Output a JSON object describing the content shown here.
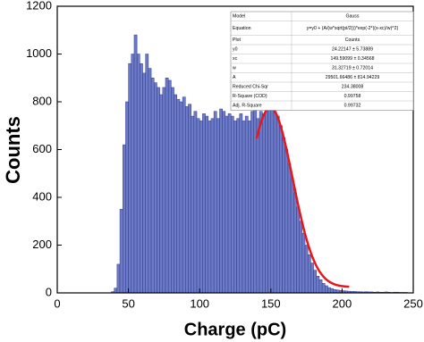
{
  "chart_data": {
    "type": "histogram",
    "xlabel": "Charge (pC)",
    "ylabel": "Counts",
    "bins": [
      38,
      40,
      42,
      44,
      46,
      48,
      50,
      52,
      54,
      56,
      58,
      60,
      62,
      64,
      66,
      68,
      70,
      72,
      74,
      76,
      78,
      80,
      82,
      84,
      86,
      88,
      90,
      92,
      94,
      96,
      98,
      100,
      102,
      104,
      106,
      108,
      110,
      112,
      114,
      116,
      118,
      120,
      122,
      124,
      126,
      128,
      130,
      132,
      134,
      136,
      138,
      140,
      142,
      144,
      146,
      148,
      150,
      152,
      154,
      156,
      158,
      160,
      162,
      164,
      166,
      168,
      170,
      172,
      174,
      176,
      178,
      180,
      182,
      184,
      186,
      188,
      190,
      192,
      194,
      196,
      198,
      200,
      202,
      204,
      206,
      208,
      210,
      212,
      214,
      216,
      218,
      220,
      222,
      224,
      226,
      228,
      230,
      232,
      234,
      236,
      238,
      240,
      242,
      244,
      246
    ],
    "counts": [
      5,
      20,
      120,
      350,
      620,
      800,
      960,
      1000,
      1080,
      1000,
      960,
      920,
      1000,
      940,
      900,
      880,
      860,
      830,
      860,
      900,
      890,
      860,
      830,
      810,
      800,
      820,
      780,
      790,
      740,
      760,
      730,
      720,
      750,
      740,
      720,
      730,
      760,
      730,
      770,
      760,
      740,
      750,
      740,
      720,
      730,
      750,
      720,
      740,
      720,
      760,
      780,
      730,
      760,
      750,
      770,
      780,
      770,
      760,
      740,
      700,
      650,
      600,
      540,
      480,
      420,
      360,
      300,
      250,
      200,
      160,
      125,
      95,
      70,
      55,
      40,
      30,
      22,
      18,
      14,
      12,
      10,
      9,
      8,
      7,
      6,
      6,
      5,
      5,
      4,
      5,
      4,
      4,
      3,
      4,
      3,
      3,
      4,
      3,
      2,
      3,
      3,
      2,
      2,
      2
    ],
    "color": "#6d7bc6",
    "edge_color": "#2e3b8e",
    "fit": {
      "y0": 24.22147,
      "xc": 149.59099,
      "w": 31.32719,
      "A": 29501.66486,
      "xlim": [
        140,
        205
      ],
      "color": "#e8161b"
    },
    "fit_table": {
      "rows": [
        [
          "Model",
          "Gauss"
        ],
        [
          "Equation",
          "y=y0 + (A/(w*sqrt(pi/2)))*exp(-2*((x-xc)/w)^2)"
        ],
        [
          "Plot",
          "Counts"
        ],
        [
          "y0",
          "24.22147 ± 5.73889"
        ],
        [
          "xc",
          "149.59099 ± 0.34568"
        ],
        [
          "w",
          "31.32719 ± 0.72014"
        ],
        [
          "A",
          "29501.66486 ± 814.94229"
        ],
        [
          "Reduced Chi-Sqr",
          "234.38008"
        ],
        [
          "R-Square (COD)",
          "0.99758"
        ],
        [
          "Adj. R-Square",
          "0.99732"
        ]
      ]
    },
    "xlim": [
      0,
      250
    ],
    "xticks": [
      0,
      50,
      100,
      150,
      200,
      250
    ],
    "ylim": [
      0,
      1200
    ],
    "yticks": [
      0,
      200,
      400,
      600,
      800,
      1000,
      1200
    ]
  }
}
